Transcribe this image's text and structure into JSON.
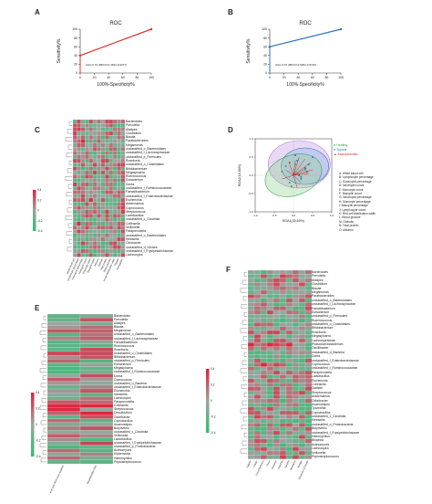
{
  "panels": {
    "a": {
      "letter": "A"
    },
    "b": {
      "letter": "B"
    },
    "c": {
      "letter": "C"
    },
    "d": {
      "letter": "D"
    },
    "e": {
      "letter": "E"
    },
    "f": {
      "letter": "F"
    }
  },
  "colors": {
    "roc_a": "#d9332f",
    "roc_b": "#2a72c5",
    "heat_low": "#2fbf71",
    "heat_mid": "#9aa5a0",
    "heat_high": "#e0203a"
  },
  "chart_data": [
    {
      "type": "line",
      "panel": "A",
      "title": "ROC",
      "xlabel": "100%-Specificity%",
      "ylabel": "Sensitivity%",
      "x": [
        0,
        100
      ],
      "y": [
        40,
        100
      ],
      "xlim": [
        0,
        100
      ],
      "ylim": [
        0,
        100
      ],
      "xticks": [
        "0",
        "20",
        "40",
        "60",
        "80",
        "100"
      ],
      "yticks": [
        "0",
        "20",
        "40",
        "60",
        "80",
        "100"
      ],
      "annotation": "AUC:0.70  (95%CI:0.4623-0.9377)"
    },
    {
      "type": "line",
      "panel": "B",
      "title": "ROC",
      "xlabel": "100%-Specificity%",
      "ylabel": "Sensitivity%",
      "x": [
        0,
        100
      ],
      "y": [
        60,
        100
      ],
      "xlim": [
        0,
        100
      ],
      "ylim": [
        0,
        100
      ],
      "xticks": [
        "0",
        "20",
        "40",
        "60",
        "80",
        "100"
      ],
      "yticks": [
        "0",
        "20",
        "40",
        "60",
        "80",
        "100"
      ],
      "annotation": "AUC:0.75  (95%CI:0.5254-0.9746)"
    },
    {
      "type": "heatmap",
      "panel": "C",
      "rows": [
        "Bacteroides",
        "Prevotella",
        "Alistipes",
        "Clostridium",
        "Blautia",
        "Parabacteroides",
        "Megamonas",
        "unclassified_o_Bacteroidales",
        "unclassified_f_Lachnospiraceae",
        "unclassified_p_Firmicutes",
        "Roseburia",
        "unclassified_o_Clostridiales",
        "Bifidobacterium",
        "Megasphaera",
        "Ruminococcus",
        "Eubacterium",
        "Dorea",
        "unclassified_f_Ruminococcaceae",
        "Faecalibacterium",
        "unclassified_f_Enterobacteriaceae",
        "Escherichia",
        "Akkermansia",
        "Coprococcus",
        "Streptococcus",
        "Lactobacillus",
        "unclassified_c_Clostridia",
        "Collinsella",
        "Veillonella",
        "Paraprevotella",
        "unclassified_o_Bacteroidales",
        "Klebsiella",
        "Citrobacter",
        "unclassified_d_Viruses",
        "unclassified_f_Erysipelotrichaceae",
        "Lachnospira"
      ],
      "colorbar": [
        "0.4",
        "0.2",
        "0",
        "-0.2",
        "-0.4"
      ],
      "columns": [
        "White blood cell",
        "Lymphocyte percentage",
        "Eosinophil percentage",
        "Neutrophil count",
        "Monocyte count",
        "Basophil count",
        "Albumin",
        "Globulin",
        "Total protein",
        "Blood glucose",
        "Red cell distribution width",
        "Platelet",
        "Hemoglobin"
      ]
    },
    {
      "type": "scatter",
      "panel": "D",
      "xlabel": "RDA1(30.69%)",
      "ylabel": "RDA2(16.86%)",
      "xlim": [
        -1.0,
        1.0
      ],
      "ylim": [
        -1.0,
        1.0
      ],
      "xticks": [
        "-1.0",
        "-0.5",
        "0.0",
        "0.5",
        "1.0"
      ],
      "yticks": [
        "1.0",
        "0.5",
        "0.0",
        "-0.5",
        "-1.0"
      ],
      "legend_title": [
        "Healthy",
        "Typical",
        "Asymptomatic"
      ],
      "series": [
        {
          "name": "Healthy",
          "color": "#2fa84f",
          "x": [
            -0.3,
            -0.1,
            0.05,
            0.2,
            -0.2,
            0.1,
            0.3,
            -0.05
          ],
          "y": [
            0.1,
            -0.2,
            0.3,
            -0.1,
            0.25,
            0.05,
            0.15,
            -0.3
          ]
        },
        {
          "name": "Typical",
          "color": "#2a72c5",
          "x": [
            0.1,
            0.3,
            0.5,
            0.2,
            0.4,
            0.05
          ],
          "y": [
            0.4,
            0.2,
            0.5,
            -0.05,
            0.3,
            0.55
          ]
        },
        {
          "name": "Asymptomatic",
          "color": "#d9332f",
          "x": [
            0.15,
            -0.1,
            0.35
          ],
          "y": [
            0.0,
            0.35,
            0.1
          ]
        }
      ],
      "variables": [
        "A: White blood cell",
        "B: Lymphocyte percentage",
        "C: Eosinophil percentage",
        "D: Neutrophil count",
        "E: Monocyte count",
        "F: Basophil count",
        "G: Neutrophil percentage",
        "H: Monocyte percentage",
        "I: Basophil percentage",
        "J: Lymphocyte count",
        "K: Red cell distribution width",
        "L: Blood glucose",
        "M: Globulin",
        "N: Total protein",
        "O: Albumin"
      ]
    },
    {
      "type": "heatmap",
      "panel": "E",
      "rows": [
        "Bacteroides",
        "Prevotella",
        "Alistipes",
        "Blautia",
        "Megamonas",
        "unclassified_o_Bacteroidales",
        "unclassified_f_Lachnospiraceae",
        "Faecalibacterium",
        "Ruminococcus",
        "Roseburia",
        "unclassified_o_Clostridiales",
        "Bifidobacterium",
        "unclassified_p_Firmicutes",
        "Eubacterium",
        "Megasphaera",
        "unclassified_f_Ruminococcaceae",
        "Dorea",
        "Coprococcus",
        "unclassified_d_Bacteria",
        "unclassified_f_Enterobacteriaceae",
        "Escherichia",
        "Klebsiella",
        "Lachnospira",
        "Paraprevotella",
        "Collinsella",
        "Streptococcus",
        "Desulfovibrio",
        "Odoribacter",
        "Coprobacillus",
        "Anaerostipes",
        "Butyrivibrio",
        "unclassified_c_Clostridia",
        "Veillonella",
        "Lactobacillus",
        "unclassified_f_Erysipelotrichaceae",
        "unclassified_p_Proteobacteria",
        "Actinomyces",
        "Holdemania",
        "Haemophilus",
        "Peptostreptococcus"
      ],
      "colorbar": [
        "0.4",
        "0.2",
        "0",
        "-0.2",
        "-0.4"
      ],
      "columns": [
        "Duration of viral RNA nano negative",
        "Hospitalization time"
      ]
    },
    {
      "type": "heatmap",
      "panel": "F",
      "rows": [
        "Bacteroides",
        "Prevotella",
        "Alistipes",
        "Clostridium",
        "Blautia",
        "Megamonas",
        "Parabacteroides",
        "unclassified_o_Bacteroidales",
        "unclassified_f_Lachnospiraceae",
        "Faecalibacterium",
        "Eubacterium",
        "unclassified_p_Firmicutes",
        "Ruminococcus",
        "unclassified_o_Clostridiales",
        "Bifidobacterium",
        "Roseburia",
        "Megasphaera",
        "Lachnospiraceae",
        "Phascolarctobacterium",
        "Oscillibacter",
        "unclassified_d_Bacteria",
        "Dorea",
        "unclassified_f_Enterobacteriaceae",
        "Coprococcus",
        "unclassified_f_Ruminococcaceae",
        "Paraprevotella",
        "Lactobacillus",
        "Escherichia",
        "Collinsella",
        "Dialister",
        "Streptococcus",
        "Akkermansia",
        "Odoribacter",
        "Anaerostipes",
        "Tyzzerella",
        "Coprobacillus",
        "unclassified_c_Clostridia",
        "Klebsiella",
        "unclassified_o_Proteobacteria",
        "Butyrivibrio",
        "unclassified_f_Erysipelotrichaceae",
        "Haemophilus",
        "Bilophila",
        "Actinomyces",
        "Lachnospira",
        "Veillonella",
        "Peptostreptococcus"
      ],
      "colorbar": [
        "0.4",
        "0.2",
        "0",
        "-0.2",
        "-0.4"
      ],
      "columns": [
        "Fatigue",
        "Cough",
        "Chest tightness",
        "Fever",
        "Anorexia",
        "Diarrhea",
        "Nausea",
        "Headache",
        "Myalgia",
        "Shortness of breath"
      ]
    }
  ]
}
